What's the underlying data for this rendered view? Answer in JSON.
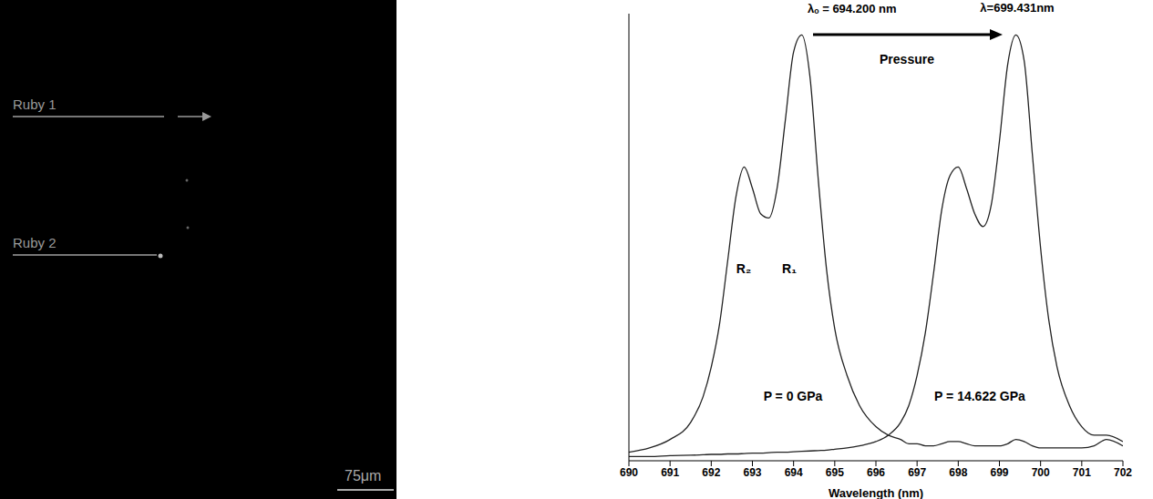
{
  "image": {
    "labels": [
      "Ruby 1",
      "Ruby 2"
    ],
    "scale_bar": "75μm"
  },
  "chart_data": {
    "type": "line",
    "xlabel": "Wavelength (nm)",
    "x": [
      690,
      690.5,
      691,
      691.5,
      691.8,
      692,
      692.2,
      692.4,
      692.6,
      692.8,
      693,
      693.2,
      693.4,
      693.6,
      693.8,
      694,
      694.2,
      694.4,
      694.6,
      694.8,
      695,
      695.3,
      695.6,
      696,
      696.3,
      696.6,
      696.8,
      697,
      697.2,
      697.4,
      697.6,
      697.8,
      698,
      698.2,
      698.4,
      698.6,
      698.8,
      699,
      699.2,
      699.4,
      699.6,
      699.8,
      700,
      700.2,
      700.4,
      700.7,
      701,
      701.3,
      701.6,
      702
    ],
    "xlim": [
      690,
      702
    ],
    "xticks": [
      690,
      691,
      692,
      693,
      694,
      695,
      696,
      697,
      698,
      699,
      700,
      701,
      702
    ],
    "ylim": [
      0,
      1.05
    ],
    "tick_labels": "x",
    "grid": false,
    "series": [
      {
        "name": "P = 0 GPa",
        "color": "#222222",
        "values": [
          0.02,
          0.03,
          0.05,
          0.09,
          0.15,
          0.22,
          0.32,
          0.47,
          0.62,
          0.69,
          0.64,
          0.58,
          0.57,
          0.64,
          0.8,
          0.96,
          1.0,
          0.9,
          0.66,
          0.45,
          0.31,
          0.2,
          0.13,
          0.08,
          0.06,
          0.05,
          0.04,
          0.04,
          0.035,
          0.035,
          0.04,
          0.045,
          0.045,
          0.04,
          0.035,
          0.035,
          0.035,
          0.035,
          0.04,
          0.05,
          0.045,
          0.035,
          0.03,
          0.03,
          0.03,
          0.03,
          0.03,
          0.035,
          0.05,
          0.035
        ]
      },
      {
        "name": "P = 14.622 GPa",
        "color": "#222222",
        "values": [
          0.01,
          0.01,
          0.012,
          0.013,
          0.014,
          0.015,
          0.015,
          0.016,
          0.016,
          0.017,
          0.018,
          0.018,
          0.019,
          0.02,
          0.02,
          0.021,
          0.022,
          0.023,
          0.024,
          0.025,
          0.027,
          0.03,
          0.035,
          0.045,
          0.06,
          0.09,
          0.13,
          0.2,
          0.3,
          0.44,
          0.59,
          0.67,
          0.69,
          0.64,
          0.58,
          0.55,
          0.6,
          0.75,
          0.93,
          1.0,
          0.94,
          0.72,
          0.5,
          0.33,
          0.22,
          0.13,
          0.08,
          0.06,
          0.06,
          0.045
        ]
      }
    ],
    "annotations": [
      "λₒ = 694.200 nm",
      "λ=699.431nm",
      "Pressure",
      "R₂",
      "R₁"
    ]
  }
}
